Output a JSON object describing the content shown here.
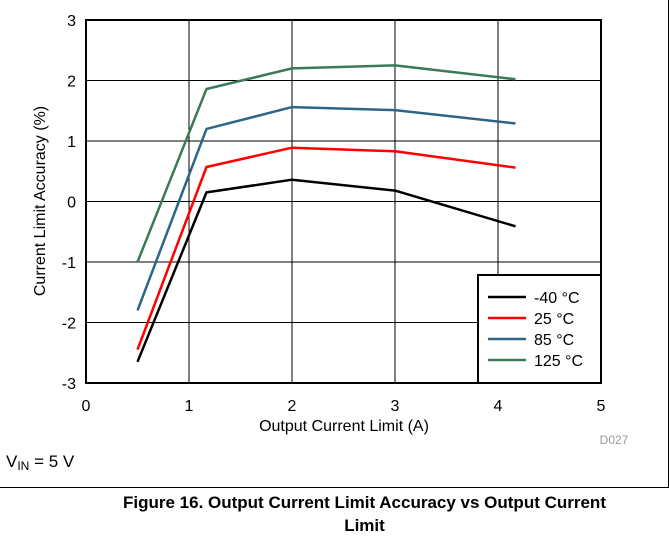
{
  "chart_data": {
    "type": "line",
    "xlabel": "Output Current Limit (A)",
    "ylabel": "Current Limit Accuracy (%)",
    "xlim": [
      0,
      5
    ],
    "ylim": [
      -3,
      3
    ],
    "xticks": [
      0,
      1,
      2,
      3,
      4,
      5
    ],
    "yticks": [
      -3,
      -2,
      -1,
      0,
      1,
      2,
      3
    ],
    "grid": true,
    "legend_position": "bottom-right",
    "series": [
      {
        "name": "-40 °C",
        "color": "#000000",
        "x": [
          0.5,
          1.17,
          2.0,
          3.0,
          4.17
        ],
        "y": [
          -2.65,
          0.15,
          0.36,
          0.18,
          -0.41
        ]
      },
      {
        "name": "25 °C",
        "color": "#ff0000",
        "x": [
          0.5,
          1.17,
          2.0,
          3.0,
          4.17
        ],
        "y": [
          -2.45,
          0.57,
          0.89,
          0.83,
          0.56
        ]
      },
      {
        "name": "85 °C",
        "color": "#2e6585",
        "x": [
          0.5,
          1.17,
          2.0,
          3.0,
          4.17
        ],
        "y": [
          -1.8,
          1.2,
          1.56,
          1.51,
          1.29
        ]
      },
      {
        "name": "125 °C",
        "color": "#3b7a57",
        "x": [
          0.5,
          1.17,
          2.0,
          3.0,
          4.17
        ],
        "y": [
          -1.0,
          1.86,
          2.2,
          2.25,
          2.02
        ]
      }
    ]
  },
  "figure_id": "D027",
  "condition": {
    "prefix": "V",
    "subscript": "IN",
    "suffix": " = 5 V"
  },
  "caption": {
    "line1": "Figure 16. Output Current Limit Accuracy vs Output Current",
    "line2": "Limit"
  }
}
